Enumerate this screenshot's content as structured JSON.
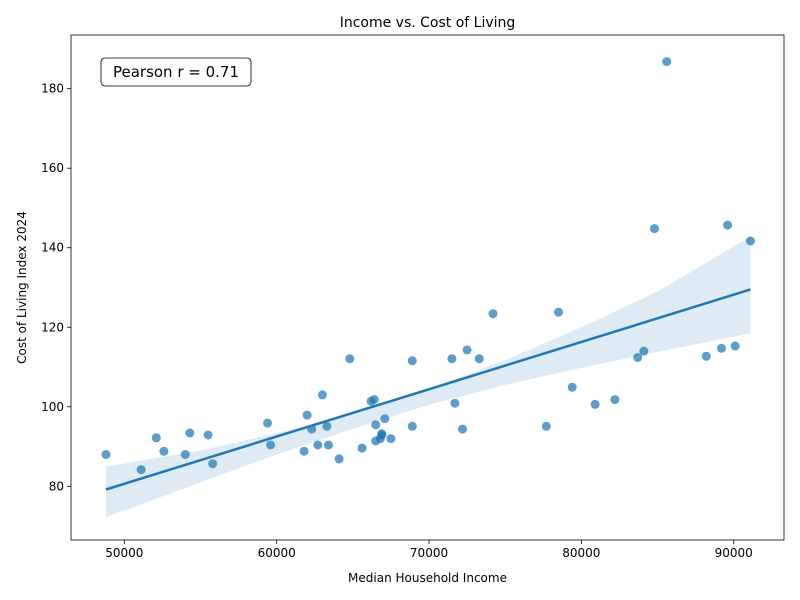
{
  "chart_data": {
    "type": "scatter",
    "title": "Income vs. Cost of Living",
    "xlabel": "Median Household Income",
    "ylabel": "Cost of Living Index 2024",
    "xlim": [
      46500,
      93300
    ],
    "ylim": [
      66.5,
      193.5
    ],
    "xticks": [
      50000,
      60000,
      70000,
      80000,
      90000
    ],
    "yticks": [
      80,
      100,
      120,
      140,
      160,
      180
    ],
    "annotation": "Pearson r = 0.71",
    "grid": false,
    "colors": {
      "points": "#1f77b4",
      "line": "#1f77b4",
      "band": "#1f77b4"
    },
    "points": [
      [
        48800,
        88.0
      ],
      [
        51100,
        84.2
      ],
      [
        52100,
        92.2
      ],
      [
        52600,
        88.8
      ],
      [
        54000,
        88.0
      ],
      [
        54300,
        93.4
      ],
      [
        55500,
        92.9
      ],
      [
        55800,
        85.7
      ],
      [
        59400,
        95.9
      ],
      [
        59600,
        90.4
      ],
      [
        61800,
        88.8
      ],
      [
        62000,
        97.9
      ],
      [
        62300,
        94.4
      ],
      [
        62700,
        90.4
      ],
      [
        63000,
        103.0
      ],
      [
        63300,
        95.1
      ],
      [
        63400,
        90.4
      ],
      [
        64100,
        86.9
      ],
      [
        64800,
        112.1
      ],
      [
        65600,
        89.6
      ],
      [
        66200,
        101.4
      ],
      [
        66400,
        101.8
      ],
      [
        66500,
        91.4
      ],
      [
        66500,
        95.5
      ],
      [
        66800,
        92.0
      ],
      [
        66900,
        92.9
      ],
      [
        66900,
        93.2
      ],
      [
        67100,
        97.0
      ],
      [
        67500,
        92.0
      ],
      [
        68900,
        111.6
      ],
      [
        68900,
        95.1
      ],
      [
        71500,
        112.1
      ],
      [
        71700,
        100.9
      ],
      [
        72200,
        94.4
      ],
      [
        72500,
        114.3
      ],
      [
        73300,
        112.1
      ],
      [
        74200,
        123.4
      ],
      [
        77700,
        95.1
      ],
      [
        78500,
        123.8
      ],
      [
        79400,
        104.9
      ],
      [
        80900,
        100.6
      ],
      [
        82200,
        101.8
      ],
      [
        83700,
        112.4
      ],
      [
        84100,
        114.0
      ],
      [
        84800,
        144.8
      ],
      [
        85600,
        186.8
      ],
      [
        88200,
        112.7
      ],
      [
        89200,
        114.7
      ],
      [
        89600,
        145.7
      ],
      [
        90100,
        115.3
      ],
      [
        91100,
        141.7
      ]
    ],
    "regression": {
      "x": [
        48800,
        91100
      ],
      "y": [
        79.2,
        129.5
      ]
    },
    "confidence_band": {
      "x": [
        48800,
        55000,
        60000,
        65000,
        70000,
        75000,
        80000,
        85000,
        91100
      ],
      "lower": [
        72.2,
        81.0,
        88.0,
        94.5,
        100.5,
        105.5,
        109.8,
        113.8,
        118.5
      ],
      "upper": [
        84.9,
        89.0,
        93.3,
        98.3,
        104.5,
        111.7,
        120.0,
        129.0,
        142.8
      ]
    }
  }
}
